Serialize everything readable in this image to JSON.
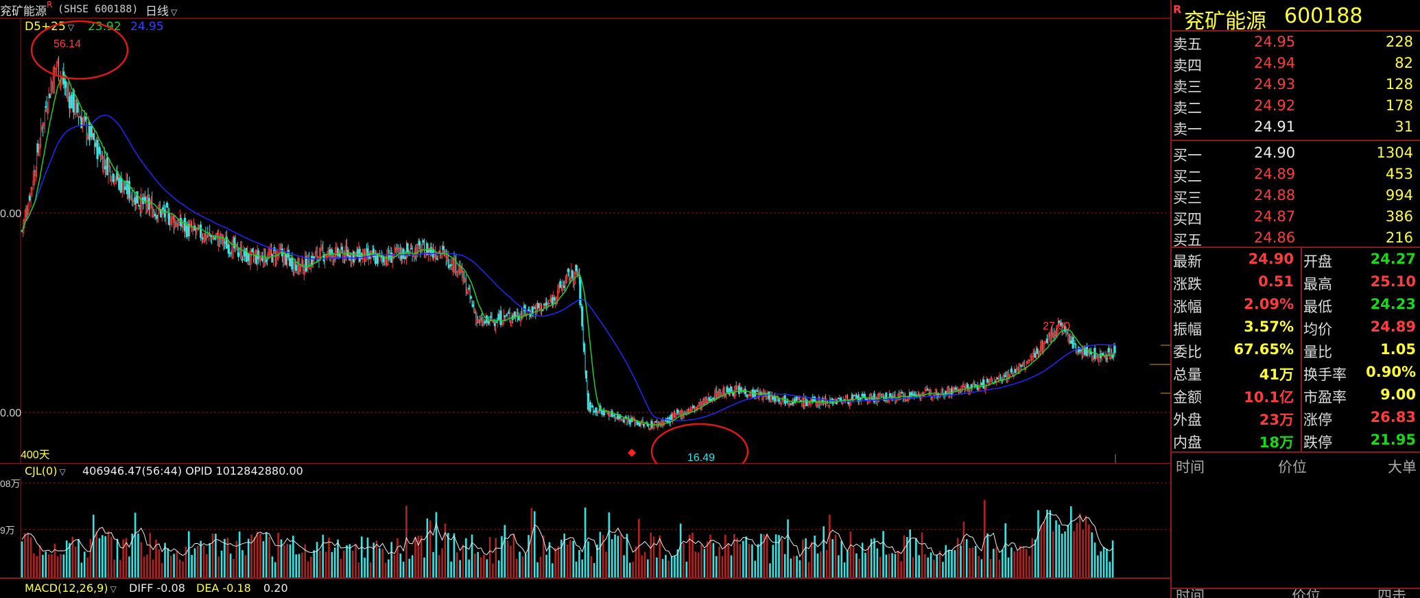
{
  "topbar": {
    "name": "兖矿能源",
    "r_mark": "R",
    "code": "(SHSE 600188)",
    "period": "日线",
    "period_chevron": "chevron-down-icon",
    "ma_label": "D5+25",
    "ma5": "23.92",
    "ma25": "24.95"
  },
  "main_chart": {
    "y_labels": [
      "0.00",
      "0.00"
    ],
    "high_label": "56.14",
    "low_label": "16.49",
    "recent_high_label": "27.90",
    "days_label": "400天",
    "colors": {
      "up": "#ff3c3c",
      "down": "#33e5e5",
      "ma5": "#22d022",
      "ma25": "#2525ff",
      "grid": "#8b1a1a",
      "circle": "#e01818"
    }
  },
  "chart_data": {
    "type": "candlestick",
    "series": [
      {
        "name": "D5",
        "label": "23.92"
      },
      {
        "name": "25",
        "label": "24.95"
      }
    ],
    "annotations": {
      "high": 56.14,
      "low": 16.49,
      "recent_high": 27.9
    },
    "ylim": [
      14,
      58
    ],
    "x_span_days": 400
  },
  "volume": {
    "title": "CJL(0)",
    "values_text": "406946.47(56:44)  OPID 1012842880.00",
    "y_labels": [
      "08万",
      "9万"
    ]
  },
  "macd": {
    "title": "MACD(12,26,9)",
    "diff": "DIFF -0.08",
    "dea": "DEA -0.18",
    "macd_val": "0.20"
  },
  "panel": {
    "r_mark": "R",
    "name": "兖矿能源",
    "code": "600188",
    "sell": [
      {
        "label": "卖五",
        "price": "24.95",
        "vol": "228"
      },
      {
        "label": "卖四",
        "price": "24.94",
        "vol": "82"
      },
      {
        "label": "卖三",
        "price": "24.93",
        "vol": "128"
      },
      {
        "label": "卖二",
        "price": "24.92",
        "vol": "178"
      },
      {
        "label": "卖一",
        "price": "24.91",
        "vol": "31"
      }
    ],
    "buy": [
      {
        "label": "买一",
        "price": "24.90",
        "vol": "1304"
      },
      {
        "label": "买二",
        "price": "24.89",
        "vol": "453"
      },
      {
        "label": "买三",
        "price": "24.88",
        "vol": "994"
      },
      {
        "label": "买四",
        "price": "24.87",
        "vol": "386"
      },
      {
        "label": "买五",
        "price": "24.86",
        "vol": "216"
      }
    ],
    "stats": [
      {
        "l1": "最新",
        "v1": "24.90",
        "c1": "red",
        "l2": "开盘",
        "v2": "24.27",
        "c2": "green"
      },
      {
        "l1": "涨跌",
        "v1": "0.51",
        "c1": "red",
        "l2": "最高",
        "v2": "25.10",
        "c2": "red"
      },
      {
        "l1": "涨幅",
        "v1": "2.09%",
        "c1": "red",
        "l2": "最低",
        "v2": "24.23",
        "c2": "green"
      },
      {
        "l1": "振幅",
        "v1": "3.57%",
        "c1": "yellow",
        "l2": "均价",
        "v2": "24.89",
        "c2": "red"
      },
      {
        "l1": "委比",
        "v1": "67.65%",
        "c1": "yellow",
        "l2": "量比",
        "v2": "1.05",
        "c2": "yellow"
      },
      {
        "l1": "总量",
        "v1": "41万",
        "c1": "yellow",
        "l2": "换手率",
        "v2": "0.90%",
        "c2": "yellow"
      },
      {
        "l1": "金额",
        "v1": "10.1亿",
        "c1": "red",
        "l2": "市盈率",
        "v2": "9.00",
        "c2": "yellow"
      },
      {
        "l1": "外盘",
        "v1": "23万",
        "c1": "red",
        "l2": "涨停",
        "v2": "26.83",
        "c2": "red"
      },
      {
        "l1": "内盘",
        "v1": "18万",
        "c1": "green",
        "l2": "跌停",
        "v2": "21.95",
        "c2": "green"
      }
    ],
    "tick_headers": [
      "时间",
      "价位",
      "大单"
    ],
    "tick_headers_bottom": [
      "时间",
      "价位",
      "四击"
    ]
  }
}
